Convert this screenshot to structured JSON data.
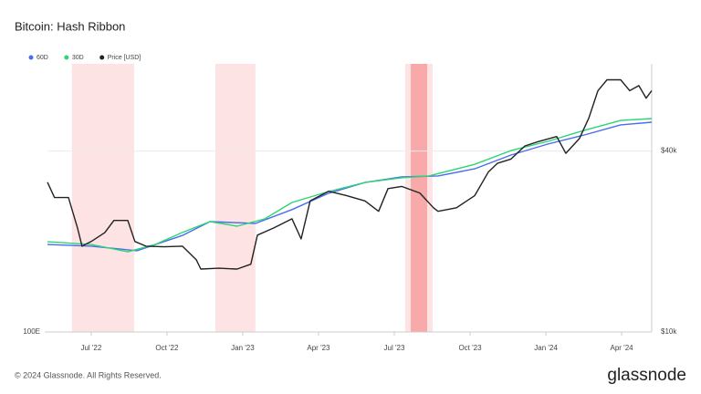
{
  "chart_data": {
    "type": "line",
    "title": "Bitcoin: Hash Ribbon",
    "xlim": [
      -1.73,
      22.19
    ],
    "xticks": [
      {
        "value": 0,
        "label": "Jul '22"
      },
      {
        "value": 3,
        "label": "Oct '22"
      },
      {
        "value": 6,
        "label": "Jan '23"
      },
      {
        "value": 9,
        "label": "Apr '23"
      },
      {
        "value": 12,
        "label": "Jul '23"
      },
      {
        "value": 15,
        "label": "Oct '23"
      },
      {
        "value": 18,
        "label": "Jan '24"
      },
      {
        "value": 21,
        "label": "Apr '24"
      }
    ],
    "ylim": [
      100,
      1000
    ],
    "log_y": true,
    "yticks": [
      {
        "value": 100,
        "label": "100E"
      }
    ],
    "y2lim": [
      10000,
      78000
    ],
    "log_y2": true,
    "y2ticks": [
      {
        "value": 10000,
        "label": "$10k"
      },
      {
        "value": 40000,
        "label": "$40k"
      }
    ],
    "grid": true,
    "legend": "top-left",
    "bands": [
      {
        "from": -0.76,
        "to": 1.7,
        "color": "#fde3e3"
      },
      {
        "from": 4.92,
        "to": 6.5,
        "color": "#fde3e3"
      },
      {
        "from": 12.43,
        "to": 13.52,
        "color": "#fde3e3"
      },
      {
        "from": 12.65,
        "to": 13.3,
        "color": "#f8a9a9"
      }
    ],
    "series": [
      {
        "name": "60D",
        "color": "#4a6cf0",
        "x": [
          -1.73,
          0,
          1.81,
          3.61,
          4.7,
          6.5,
          7.95,
          9.4,
          10.84,
          12.29,
          13.73,
          15.18,
          16.62,
          18.07,
          19.52,
          20.96,
          22.19
        ],
        "values": [
          212,
          209,
          201,
          229,
          258,
          254,
          286,
          329,
          361,
          379,
          382,
          406,
          457,
          502,
          543,
          592,
          606
        ]
      },
      {
        "name": "30D",
        "color": "#2bd673",
        "x": [
          -1.73,
          0,
          1.45,
          2.53,
          3.61,
          4.7,
          5.78,
          6.87,
          7.95,
          9.4,
          10.84,
          12.29,
          13.37,
          15.18,
          16.62,
          18.07,
          19.52,
          20.96,
          22.19
        ],
        "values": [
          217,
          212,
          199,
          212,
          235,
          258,
          248,
          264,
          304,
          334,
          361,
          376,
          382,
          422,
          475,
          514,
          565,
          615,
          625
        ]
      },
      {
        "name": "Price [USD]",
        "color": "#222222",
        "axis": "y2",
        "x": [
          -1.73,
          -1.45,
          -0.9,
          -0.54,
          -0.36,
          0,
          0.54,
          0.9,
          1.45,
          1.73,
          2.17,
          2.89,
          3.61,
          4.16,
          4.34,
          5.06,
          5.78,
          6.32,
          6.58,
          7.23,
          7.95,
          8.31,
          8.67,
          9.4,
          10.12,
          10.84,
          11.38,
          11.75,
          12.29,
          13.01,
          13.55,
          13.73,
          14.46,
          15.18,
          15.72,
          16.08,
          16.62,
          17.17,
          17.71,
          18.43,
          18.79,
          19.33,
          19.7,
          20.06,
          20.42,
          20.96,
          21.32,
          21.68,
          21.97,
          22.19
        ],
        "values": [
          31500,
          28000,
          28000,
          22200,
          19300,
          20000,
          21400,
          23500,
          23500,
          20000,
          19300,
          19200,
          19300,
          17400,
          16200,
          16300,
          16200,
          16800,
          21000,
          22200,
          23800,
          20400,
          27300,
          29400,
          28400,
          27300,
          25200,
          30000,
          30500,
          29000,
          25900,
          25200,
          25900,
          28400,
          34000,
          36400,
          37600,
          41600,
          43000,
          44700,
          39300,
          44000,
          51500,
          63500,
          69000,
          69000,
          63500,
          66000,
          60000,
          63500
        ]
      }
    ]
  },
  "footer": "© 2024 Glassnode. All Rights Reserved.",
  "brand": "glassnode"
}
